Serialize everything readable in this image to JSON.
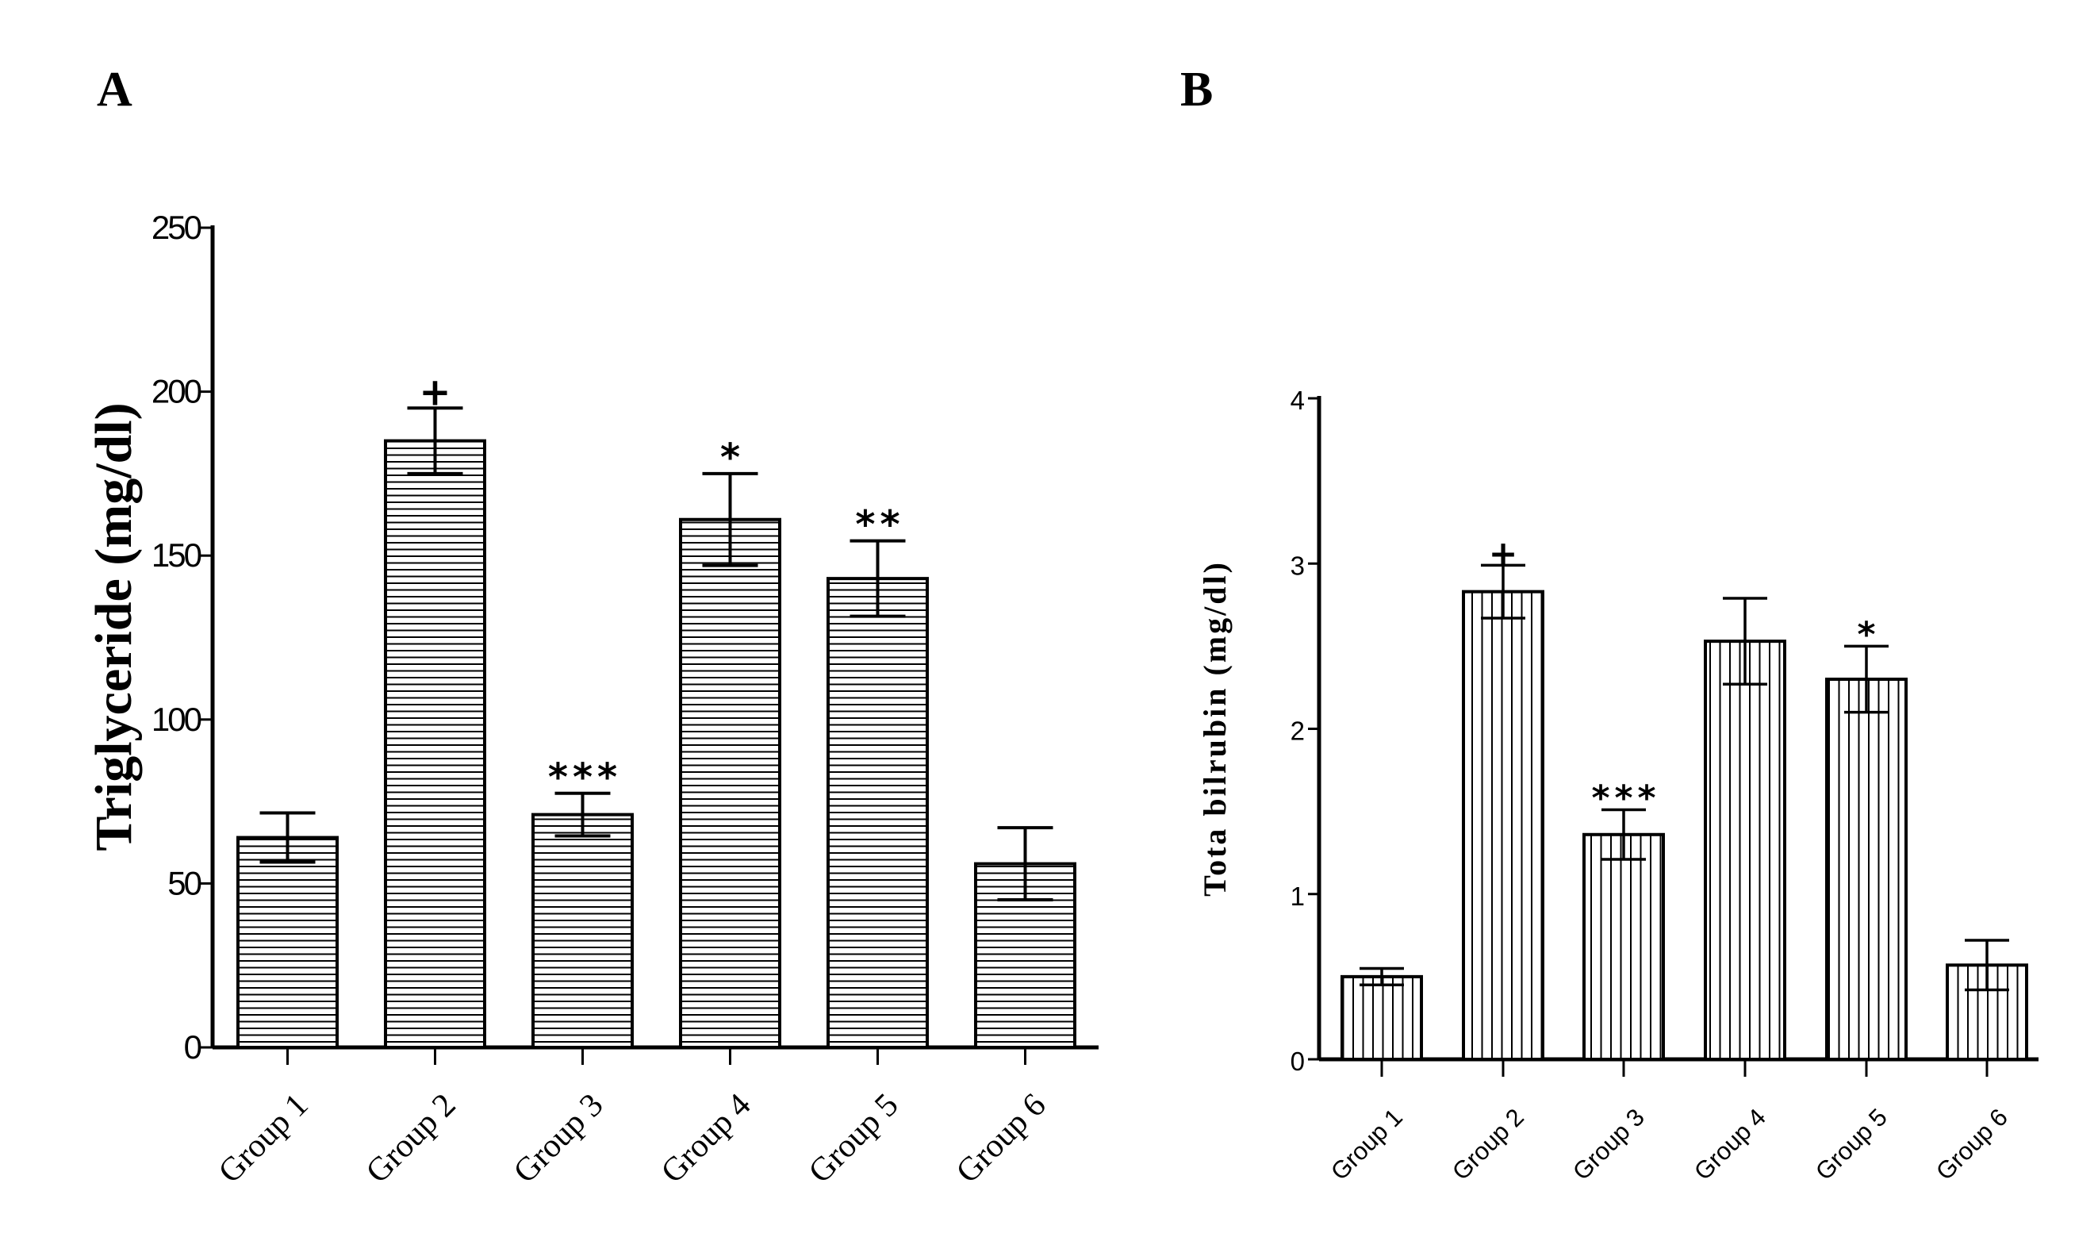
{
  "figure": {
    "panel_labels": [
      "A",
      "B"
    ],
    "colors": {
      "ink": "#000000",
      "background": "#ffffff"
    }
  },
  "chart_data": [
    {
      "type": "bar",
      "panel": "A",
      "title": "",
      "xlabel": "",
      "ylabel": "Triglyceride  (mg/dl)",
      "ylim": [
        0,
        250
      ],
      "yticks": [
        "0",
        "50",
        "100",
        "150",
        "200",
        "250"
      ],
      "categories": [
        "Group 1",
        "Group 2",
        "Group 3",
        "Group 4",
        "Group 5",
        "Group 6"
      ],
      "values": [
        64,
        185,
        71,
        161,
        143,
        56
      ],
      "errors": [
        7.5,
        10,
        6.5,
        14,
        11.5,
        11
      ],
      "annotations": [
        "",
        "+",
        "***",
        "*",
        "**",
        ""
      ],
      "fill_pattern": "horizontal-hatch",
      "grid": false
    },
    {
      "type": "bar",
      "panel": "B",
      "title": "",
      "xlabel": "",
      "ylabel": "Tota bilrubin  (mg/dl)",
      "ylim": [
        0,
        4
      ],
      "yticks": [
        "0",
        "1",
        "2",
        "3",
        "4"
      ],
      "categories": [
        "Group 1",
        "Group 2",
        "Group 3",
        "Group 4",
        "Group 5",
        "Group 6"
      ],
      "values": [
        0.5,
        2.83,
        1.36,
        2.53,
        2.3,
        0.57
      ],
      "errors": [
        0.05,
        0.16,
        0.15,
        0.26,
        0.2,
        0.15
      ],
      "annotations": [
        "",
        "+",
        "***",
        "",
        "*",
        ""
      ],
      "fill_pattern": "vertical-hatch",
      "grid": false
    }
  ]
}
